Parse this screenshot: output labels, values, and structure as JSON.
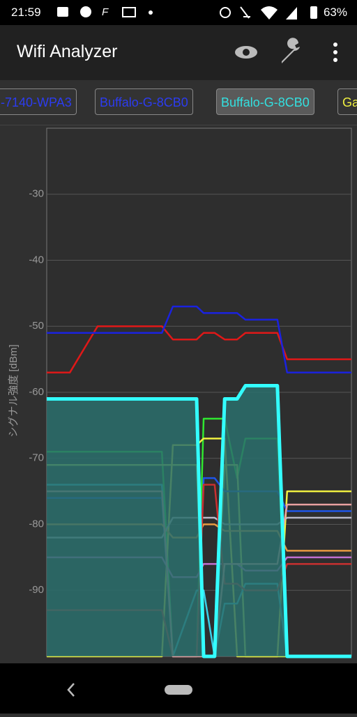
{
  "status_bar": {
    "time": "21:59",
    "battery": "63%"
  },
  "app_bar": {
    "title": "Wifi Analyzer"
  },
  "tabs": [
    {
      "label": "-7140-WPA3",
      "color": "#2c3cf0",
      "selected": false
    },
    {
      "label": "Buffalo-G-8CB0",
      "color": "#2c3cf0",
      "selected": false
    },
    {
      "label": "Buffalo-G-8CB0",
      "color": "#33e0e0",
      "selected": true
    },
    {
      "label": "Ga",
      "color": "#f0f040",
      "selected": false
    }
  ],
  "chart_data": {
    "type": "line",
    "y_label": "シグナル強度 [dBm]",
    "ylim": [
      -100,
      -20
    ],
    "yticks": [
      -30,
      -40,
      -50,
      -60,
      -70,
      -80,
      -90
    ],
    "grid": true,
    "categories": [
      null,
      null,
      null,
      null,
      null,
      null,
      null,
      null,
      null,
      null,
      null,
      null,
      null,
      null
    ],
    "series": [
      {
        "color": "#e01818",
        "values": [
          -57,
          -57,
          -50,
          -50,
          -52,
          -52,
          -51,
          -51,
          -52,
          -52,
          -51,
          -51,
          -55,
          -55
        ]
      },
      {
        "color": "#1a22e0",
        "values": [
          -51,
          -51,
          -51,
          -51,
          -47,
          -47,
          -48,
          -48,
          -48,
          -48,
          -49,
          -49,
          -57,
          -57
        ]
      },
      {
        "color": "#30e830",
        "values": [
          -69,
          -69,
          -69,
          -69,
          -100,
          -100,
          -64,
          -64,
          -64,
          -73,
          -67,
          -67,
          -100,
          -100
        ]
      },
      {
        "color": "#c8f050",
        "values": [
          -71,
          -71,
          -71,
          -71,
          -71,
          -71,
          -100,
          -100,
          -71,
          -71,
          -100,
          -100,
          -100,
          -100
        ]
      },
      {
        "color": "#f0f040",
        "values": [
          -100,
          -100,
          -100,
          -100,
          -68,
          -68,
          -67,
          -67,
          -67,
          -100,
          -100,
          -100,
          -75,
          -75
        ]
      },
      {
        "color": "#1f55e8",
        "values": [
          -76,
          -76,
          -76,
          -76,
          -100,
          -100,
          -73,
          -73,
          -75,
          -75,
          -75,
          -75,
          -78,
          -78
        ]
      },
      {
        "color": "#3ad0e8",
        "values": [
          -74,
          -74,
          -74,
          -74,
          -100,
          -90,
          -90,
          -100,
          -92,
          -92,
          -89,
          -89,
          -100,
          -100
        ]
      },
      {
        "color": "#e89a40",
        "values": [
          -80,
          -80,
          -80,
          -80,
          -82,
          -82,
          -80,
          -80,
          -81,
          -81,
          -81,
          -81,
          -84,
          -84
        ]
      },
      {
        "color": "#b8b8c8",
        "values": [
          -82,
          -82,
          -82,
          -82,
          -79,
          -79,
          -79,
          -79,
          -80,
          -80,
          -80,
          -80,
          -79,
          -79
        ]
      },
      {
        "color": "#c070d0",
        "values": [
          -85,
          -85,
          -85,
          -85,
          -88,
          -88,
          -86,
          -86,
          -86,
          -86,
          -87,
          -87,
          -85,
          -85
        ]
      },
      {
        "color": "#c83030",
        "values": [
          -93,
          -93,
          -93,
          -93,
          -100,
          -100,
          -74,
          -74,
          -89,
          -89,
          -90,
          -90,
          -86,
          -86
        ]
      },
      {
        "color": "#e8a0a0",
        "values": [
          -75,
          -75,
          -75,
          -75,
          -100,
          -100,
          -100,
          -100,
          -86,
          -86,
          -86,
          -86,
          -77,
          -77
        ]
      },
      {
        "color": "#33ffff",
        "fill": "#2a6e6c",
        "selected": true,
        "values": [
          -61,
          -61,
          -61,
          -61,
          -61,
          -61,
          -100,
          -100,
          -61,
          -61,
          -59,
          -59,
          -100,
          -100
        ]
      }
    ]
  }
}
